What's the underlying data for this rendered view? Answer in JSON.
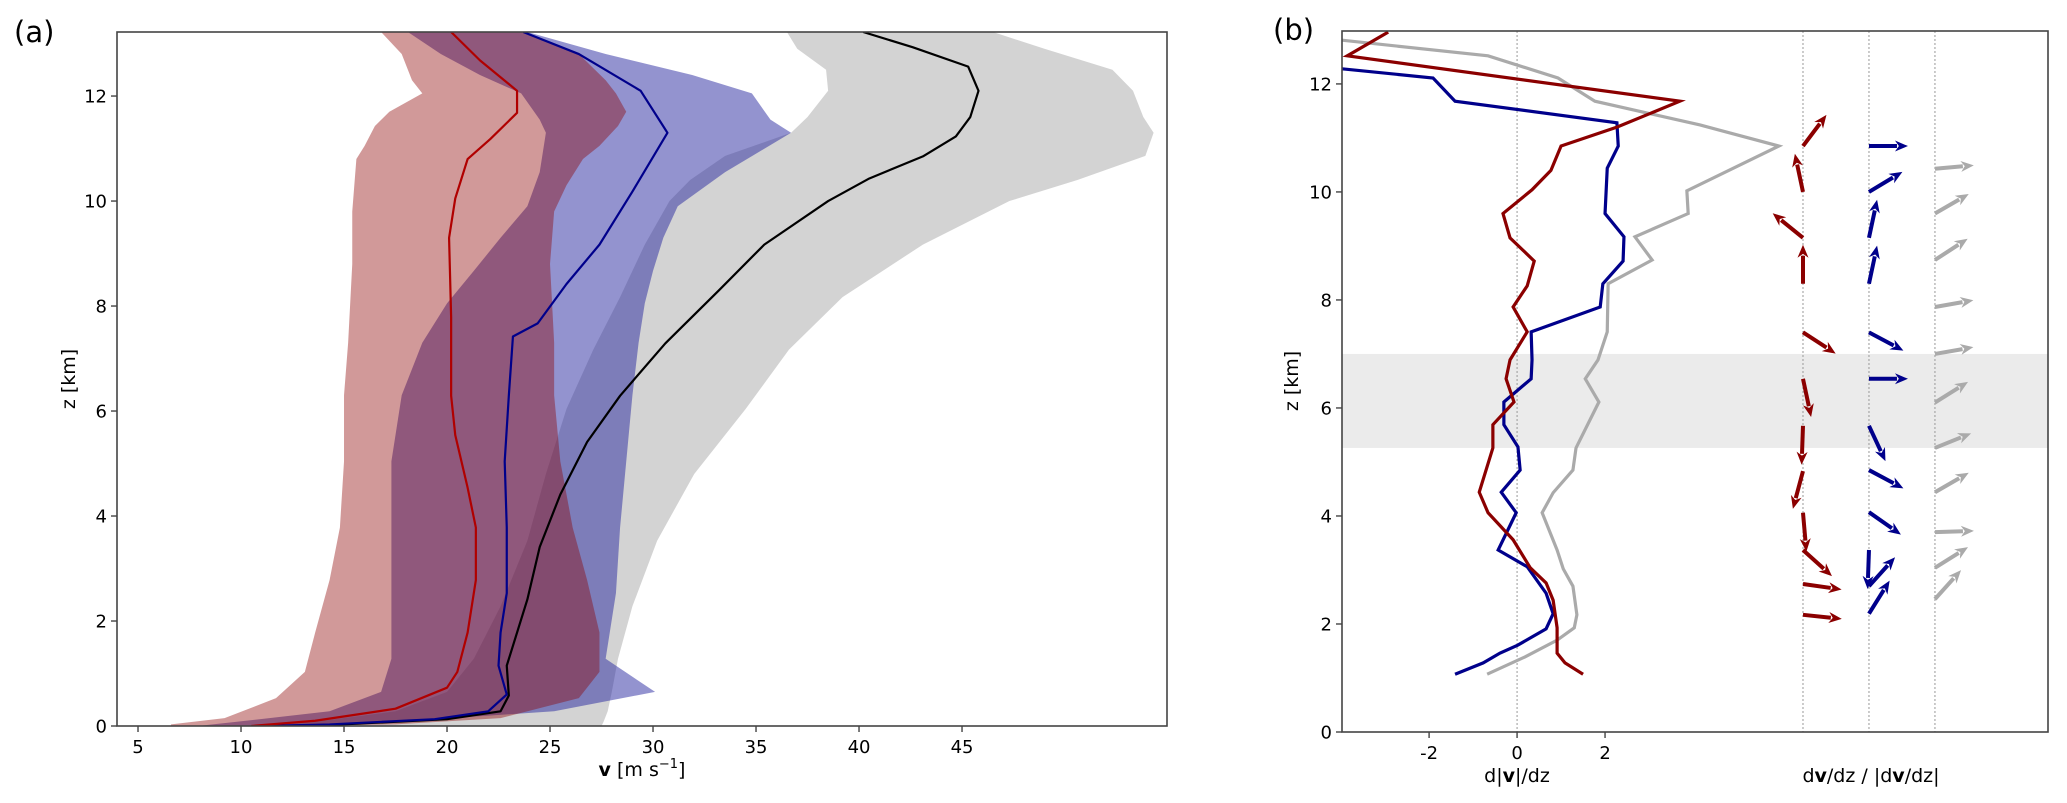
{
  "chart_data": [
    {
      "panel_label": "(a)",
      "type": "line",
      "xlabel": {
        "bold": "v",
        "rest": " [m s",
        "sup": "−1",
        "close": "]"
      },
      "ylabel": "z [km]",
      "xlim": [
        3.98,
        54.95
      ],
      "ylim": [
        0,
        13.22
      ],
      "xticks": [
        5,
        10,
        15,
        20,
        25,
        30,
        35,
        40,
        45
      ],
      "xtick_labels": [
        "5",
        "10",
        "15",
        "20",
        "25",
        "30",
        "35",
        "40",
        "45"
      ],
      "yticks": [
        0,
        2,
        4,
        6,
        8,
        10,
        12
      ],
      "ytick_labels": [
        "0",
        "2",
        "4",
        "6",
        "8",
        "10",
        "12"
      ],
      "grid": false,
      "bands": [
        {
          "name": "gray",
          "color": "#d3d3d3",
          "opacity": 1.0,
          "z": [
            0.0,
            0.08,
            0.28,
            0.65,
            1.28,
            2.28,
            3.53,
            4.8,
            6.04,
            7.17,
            8.17,
            9.17,
            10.0,
            10.4,
            10.86,
            11.3,
            11.6,
            12.1,
            12.5,
            12.9,
            13.22
          ],
          "lo": [
            11.1,
            13.6,
            17.5,
            20.0,
            21.3,
            22.6,
            23.9,
            24.8,
            25.8,
            27.1,
            28.4,
            29.6,
            30.8,
            31.8,
            33.5,
            36.7,
            37.5,
            38.5,
            38.4,
            37.0,
            36.5
          ],
          "hi": [
            27.5,
            27.6,
            27.8,
            28.0,
            28.3,
            29.0,
            30.2,
            32.0,
            34.5,
            36.6,
            39.2,
            43.1,
            47.3,
            50.6,
            53.9,
            54.3,
            53.8,
            53.3,
            52.3,
            49.0,
            46.5
          ]
        },
        {
          "name": "blue",
          "color": "#2828a0",
          "opacity": 0.5,
          "z": [
            0.0,
            0.08,
            0.28,
            0.65,
            1.28,
            2.53,
            3.78,
            5.04,
            6.3,
            7.3,
            8.05,
            8.67,
            9.3,
            9.9,
            10.55,
            11.3,
            11.55,
            12.05,
            12.4,
            12.8,
            13.22
          ],
          "lo": [
            7.9,
            9.8,
            14.3,
            16.8,
            17.3,
            17.3,
            17.3,
            17.3,
            17.8,
            18.8,
            20.0,
            21.3,
            22.6,
            23.9,
            24.5,
            24.8,
            24.5,
            23.6,
            21.6,
            19.7,
            18.1
          ],
          "hi": [
            13.0,
            17.5,
            25.2,
            30.1,
            27.7,
            28.2,
            28.4,
            28.7,
            29.0,
            29.3,
            29.6,
            30.0,
            30.5,
            31.2,
            33.5,
            36.7,
            35.7,
            34.8,
            31.9,
            27.7,
            23.9
          ]
        },
        {
          "name": "red",
          "color": "#8b0000",
          "opacity": 0.4,
          "z": [
            0.0,
            0.03,
            0.15,
            0.53,
            1.03,
            1.78,
            2.78,
            3.78,
            5.04,
            6.3,
            7.3,
            8.8,
            9.8,
            10.3,
            10.8,
            11.05,
            11.43,
            11.7,
            12.05,
            12.3,
            12.8,
            13.22
          ],
          "lo": [
            6.6,
            6.6,
            9.2,
            11.7,
            13.1,
            13.6,
            14.3,
            14.8,
            15.0,
            15.0,
            15.2,
            15.4,
            15.4,
            15.5,
            15.6,
            16.0,
            16.5,
            17.2,
            18.8,
            18.3,
            17.8,
            16.8
          ],
          "hi": [
            12.4,
            17.5,
            22.6,
            26.4,
            27.4,
            27.4,
            26.8,
            26.1,
            25.5,
            25.2,
            25.2,
            25.0,
            25.2,
            25.8,
            26.6,
            27.4,
            28.3,
            28.7,
            28.2,
            27.7,
            26.4,
            23.6
          ]
        }
      ],
      "series": [
        {
          "name": "black",
          "color": "#000000",
          "z": [
            0.0,
            0.03,
            0.13,
            0.28,
            0.58,
            1.15,
            1.78,
            2.41,
            3.41,
            4.41,
            5.41,
            6.29,
            7.29,
            8.3,
            9.17,
            10.0,
            10.43,
            10.85,
            11.23,
            11.6,
            12.1,
            12.56,
            12.93,
            13.22
          ],
          "v": [
            12.5,
            14.9,
            20.0,
            22.6,
            23.0,
            22.9,
            23.4,
            23.9,
            24.5,
            25.5,
            26.8,
            28.4,
            30.6,
            33.2,
            35.4,
            38.5,
            40.5,
            43.1,
            44.7,
            45.4,
            45.8,
            45.3,
            42.6,
            40.2
          ]
        },
        {
          "name": "navy",
          "color": "#00008b",
          "z": [
            0.0,
            0.03,
            0.13,
            0.28,
            0.6,
            1.15,
            1.78,
            2.53,
            3.78,
            5.04,
            6.29,
            7.42,
            7.67,
            8.42,
            9.17,
            10.18,
            11.3,
            12.1,
            12.8,
            13.22
          ],
          "v": [
            11.0,
            14.3,
            19.4,
            22.0,
            22.9,
            22.5,
            22.6,
            22.9,
            22.9,
            22.8,
            23.0,
            23.2,
            24.4,
            25.8,
            27.4,
            29.0,
            30.7,
            29.4,
            26.4,
            23.7
          ]
        },
        {
          "name": "red",
          "color": "#b00000",
          "z": [
            0.0,
            0.1,
            0.33,
            0.73,
            1.03,
            1.78,
            2.78,
            3.78,
            4.54,
            5.54,
            6.29,
            7.79,
            9.3,
            10.05,
            10.8,
            11.18,
            11.68,
            12.1,
            12.68,
            13.22
          ],
          "v": [
            10.5,
            13.6,
            17.5,
            20.0,
            20.5,
            21.0,
            21.4,
            21.4,
            21.0,
            20.4,
            20.2,
            20.2,
            20.1,
            20.4,
            21.0,
            22.1,
            23.4,
            23.4,
            21.6,
            20.2
          ]
        }
      ]
    },
    {
      "panel_label": "(b)",
      "type": "line",
      "xlabel_left": {
        "pre": "d|",
        "bold": "v",
        "post": "|/dz"
      },
      "xlabel_right": {
        "p1": "d",
        "b1": "v",
        "p2": "/dz / |d",
        "b2": "v",
        "p3": "/dz|"
      },
      "ylabel": "z [km]",
      "xlim": [
        -3.98,
        12.07
      ],
      "ylim": [
        0,
        12.98
      ],
      "xticks": [
        -2,
        0,
        2
      ],
      "xtick_labels": [
        "-2",
        "0",
        "2"
      ],
      "yticks": [
        0,
        2,
        4,
        6,
        8,
        10,
        12
      ],
      "ytick_labels": [
        "0",
        "2",
        "4",
        "6",
        "8",
        "10",
        "12"
      ],
      "grid": false,
      "reference_lines_x": [
        0,
        6.5,
        8.0,
        9.5
      ],
      "shaded_layer_z": [
        5.26,
        7.0
      ],
      "shade_color": "#ebebeb",
      "series": [
        {
          "name": "gray",
          "color": "#aaaaaa",
          "z": [
            1.07,
            1.39,
            1.7,
            1.93,
            2.17,
            2.7,
            3.02,
            3.37,
            4.06,
            4.43,
            4.85,
            5.26,
            6.11,
            6.54,
            6.89,
            7.41,
            8.3,
            8.74,
            9.17,
            9.6,
            10.02,
            10.85,
            11.24,
            11.68,
            12.11,
            12.52,
            12.81
          ],
          "x": [
            -0.68,
            0.18,
            0.91,
            1.3,
            1.36,
            1.27,
            1.05,
            0.91,
            0.57,
            0.82,
            1.27,
            1.34,
            1.86,
            1.55,
            1.84,
            2.05,
            2.07,
            3.07,
            2.68,
            3.89,
            3.86,
            5.95,
            4.16,
            1.77,
            0.93,
            -0.66,
            -3.98
          ]
        },
        {
          "name": "navy",
          "color": "#00008b",
          "z": [
            1.07,
            1.28,
            1.46,
            1.61,
            1.91,
            2.19,
            2.57,
            3.06,
            3.37,
            4.06,
            4.44,
            4.85,
            5.28,
            5.69,
            6.11,
            6.54,
            6.89,
            7.41,
            7.87,
            8.3,
            8.72,
            9.17,
            9.6,
            10.44,
            10.85,
            11.28,
            11.68,
            12.11,
            12.28
          ],
          "x": [
            -1.41,
            -0.77,
            -0.39,
            0.02,
            0.66,
            0.82,
            0.66,
            0.23,
            -0.43,
            -0.02,
            -0.36,
            0.07,
            0.02,
            -0.3,
            -0.3,
            0.32,
            0.34,
            0.32,
            1.89,
            1.95,
            2.41,
            2.43,
            2.0,
            2.05,
            2.3,
            2.27,
            -1.41,
            -1.91,
            -3.98
          ]
        },
        {
          "name": "darkred",
          "color": "#8b0000",
          "z": [
            1.07,
            1.28,
            1.46,
            1.93,
            2.44,
            2.76,
            3.04,
            3.56,
            4.06,
            4.44,
            5.26,
            5.69,
            6.11,
            6.54,
            6.89,
            7.41,
            7.87,
            8.26,
            8.72,
            9.15,
            9.6,
            10.04,
            10.4,
            10.85,
            11.2,
            11.68,
            12.52,
            12.96
          ],
          "x": [
            1.5,
            1.09,
            0.91,
            0.91,
            0.82,
            0.66,
            0.3,
            -0.09,
            -0.66,
            -0.86,
            -0.55,
            -0.55,
            -0.07,
            -0.25,
            -0.16,
            0.23,
            -0.09,
            0.23,
            0.39,
            -0.16,
            -0.32,
            0.34,
            0.77,
            1.0,
            2.27,
            3.7,
            -3.86,
            -2.93
          ]
        }
      ],
      "arrow_columns": [
        {
          "name": "darkred",
          "color": "#8b0000",
          "x": 6.5,
          "z": [
            2.17,
            2.74,
            3.37,
            4.06,
            4.83,
            5.67,
            6.54,
            7.4,
            8.3,
            9.15,
            10.0,
            10.85
          ],
          "angle_deg": [
            -6,
            -8,
            -42,
            -85,
            -105,
            -92,
            -78,
            -33,
            90,
            141,
            102,
            53
          ]
        },
        {
          "name": "navy",
          "color": "#00008b",
          "x": 8.0,
          "z": [
            2.19,
            2.7,
            3.37,
            4.07,
            4.85,
            5.67,
            6.54,
            7.4,
            8.3,
            9.15,
            10.0,
            10.85
          ],
          "angle_deg": [
            58,
            48,
            -92,
            -35,
            -28,
            -65,
            0,
            -28,
            78,
            78,
            31,
            0
          ]
        },
        {
          "name": "gray",
          "color": "#aaaaaa",
          "x": 9.5,
          "z": [
            2.46,
            3.04,
            3.7,
            4.44,
            5.26,
            6.1,
            7.0,
            7.87,
            8.74,
            9.6,
            10.43
          ],
          "angle_deg": [
            48,
            32,
            2,
            30,
            22,
            32,
            10,
            10,
            33,
            30,
            5
          ]
        }
      ]
    }
  ]
}
